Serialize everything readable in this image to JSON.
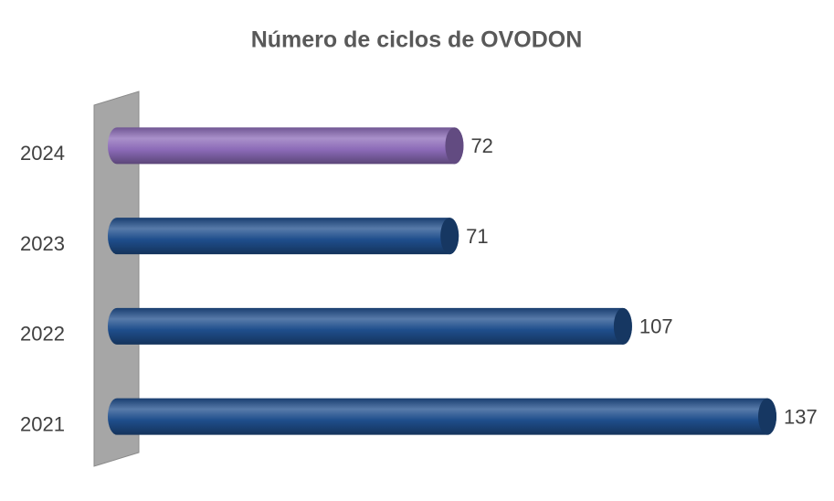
{
  "chart_data": {
    "type": "bar",
    "orientation": "horizontal",
    "title": "Número de ciclos de OVODON",
    "categories": [
      "2024",
      "2023",
      "2022",
      "2021"
    ],
    "values": [
      72,
      71,
      107,
      137
    ],
    "colors": [
      "#8c6bb8",
      "#1f4e8c",
      "#1f4e8c",
      "#1f4e8c"
    ]
  }
}
